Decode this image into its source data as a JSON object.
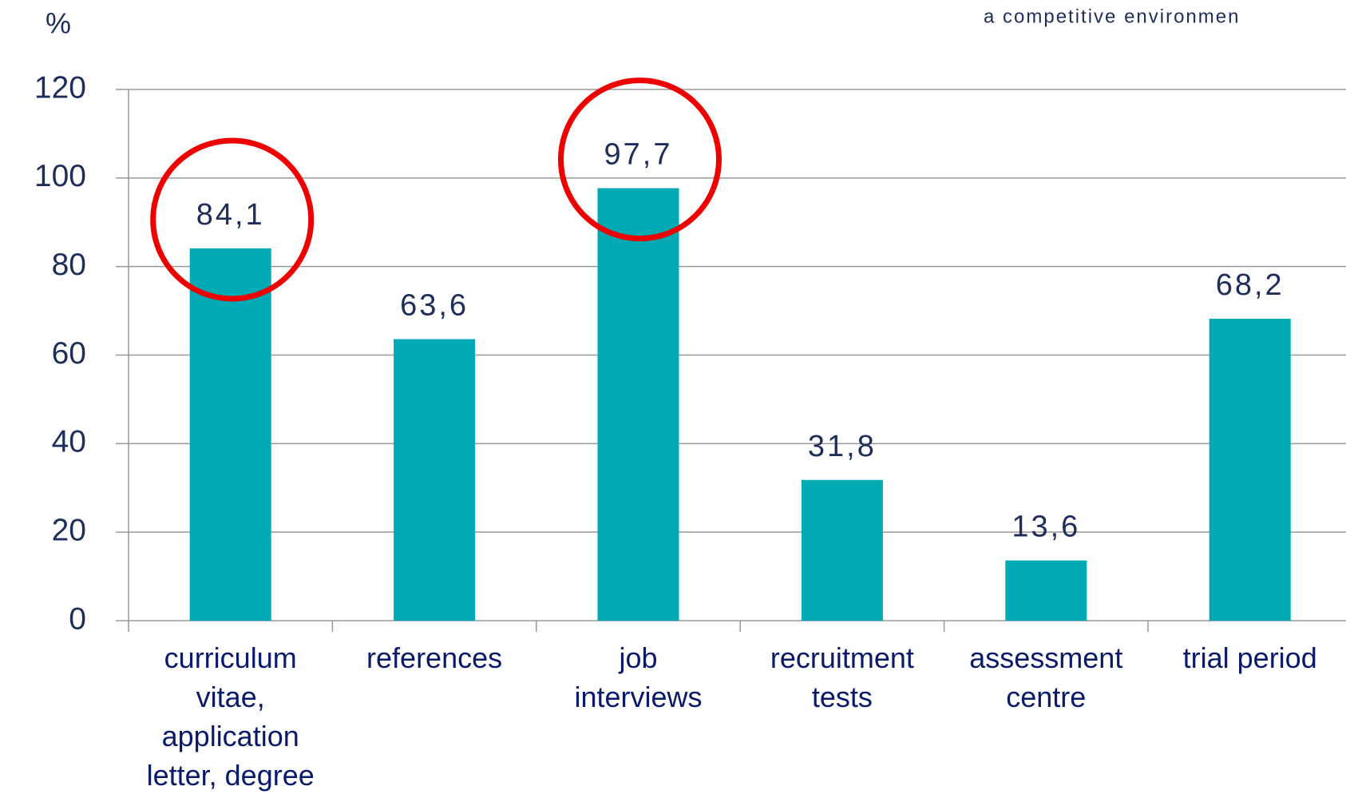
{
  "chart_data": {
    "type": "bar",
    "subtitle": "a competitive environmen",
    "ylabel": "%",
    "categories": [
      "curriculum\nvitae,\napplication\nletter, degree",
      "references",
      "job\ninterviews",
      "recruitment\ntests",
      "assessment\ncentre",
      "trial period"
    ],
    "values": [
      84.1,
      63.6,
      97.7,
      31.8,
      13.6,
      68.2
    ],
    "value_labels": [
      "84,1",
      "63,6",
      "97,7",
      "31,8",
      "13,6",
      "68,2"
    ],
    "color": "#00aab4",
    "highlight": [
      0,
      2
    ],
    "highlight_color": "#ee0000",
    "ylim": [
      0,
      120
    ],
    "yticks": [
      0,
      20,
      40,
      60,
      80,
      100,
      120
    ],
    "grid": true
  }
}
